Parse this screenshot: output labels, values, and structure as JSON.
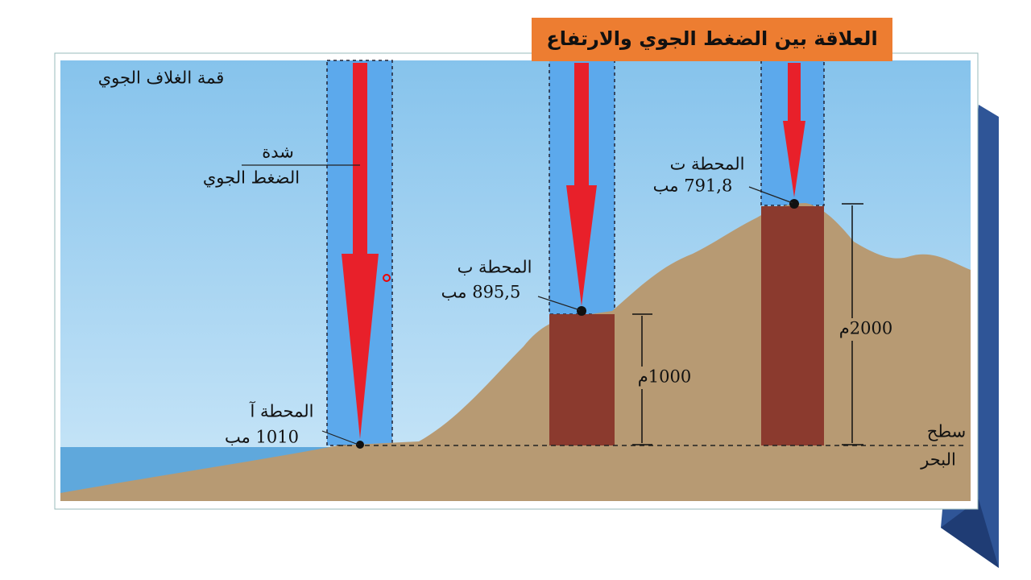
{
  "title": "العلاقة بين الضغط الجوي والارتفاع",
  "diagram": {
    "atmosphere_top": "قمة الغلاف الجوي",
    "pressure_label": [
      "شدة",
      "الضغط الجوي"
    ],
    "stations": [
      {
        "name": "المحطة آ",
        "pressure": "1010 مب"
      },
      {
        "name": "المحطة ب",
        "pressure": "895,5 مب"
      },
      {
        "name": "المحطة ت",
        "pressure": "791,8 مب"
      }
    ],
    "heights": [
      "1000م",
      "2000م"
    ],
    "sea_level": [
      "سطح",
      "البحر"
    ]
  }
}
